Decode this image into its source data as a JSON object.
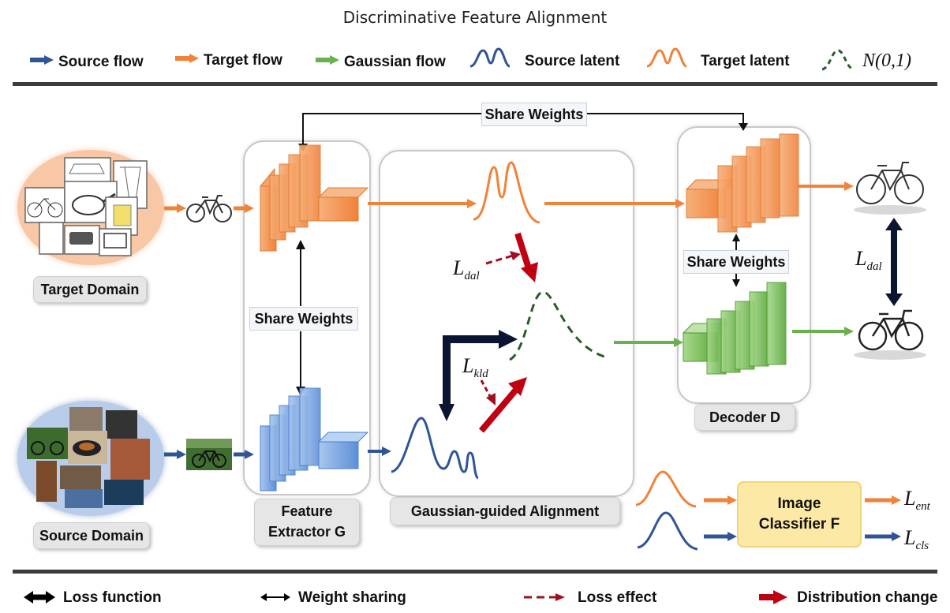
{
  "title": "Discriminative Feature Alignment",
  "top_legend": {
    "source_flow": "Source flow",
    "target_flow": "Target flow",
    "gaussian_flow": "Gaussian flow",
    "source_latent": "Source latent",
    "target_latent": "Target latent",
    "normal_dist": "N(0,1)"
  },
  "labels": {
    "target_domain": "Target Domain",
    "source_domain": "Source Domain",
    "share_weights_top": "Share Weights",
    "share_weights_left": "Share Weights",
    "share_weights_right": "Share Weights",
    "feature_extractor_line1": "Feature",
    "feature_extractor_line2": "Extractor G",
    "alignment": "Gaussian-guided Alignment",
    "decoder": "Decoder D",
    "classifier_line1": "Image",
    "classifier_line2": "Classifier F"
  },
  "losses": {
    "l_dal_main": "L",
    "l_dal_main_sub": "dal",
    "l_kld": "L",
    "l_kld_sub": "kld",
    "l_dal_right": "L",
    "l_dal_right_sub": "dal",
    "l_ent": "L",
    "l_ent_sub": "ent",
    "l_cls": "L",
    "l_cls_sub": "cls"
  },
  "bottom_legend": {
    "loss_function": "Loss function",
    "weight_sharing": "Weight sharing",
    "loss_effect": "Loss effect",
    "distribution_change": "Distribution change"
  },
  "colors": {
    "orange": "#f0823a",
    "blue": "#2f5597",
    "green": "#6ab04c",
    "dark_red": "#b01020",
    "navy": "#0b1530"
  }
}
